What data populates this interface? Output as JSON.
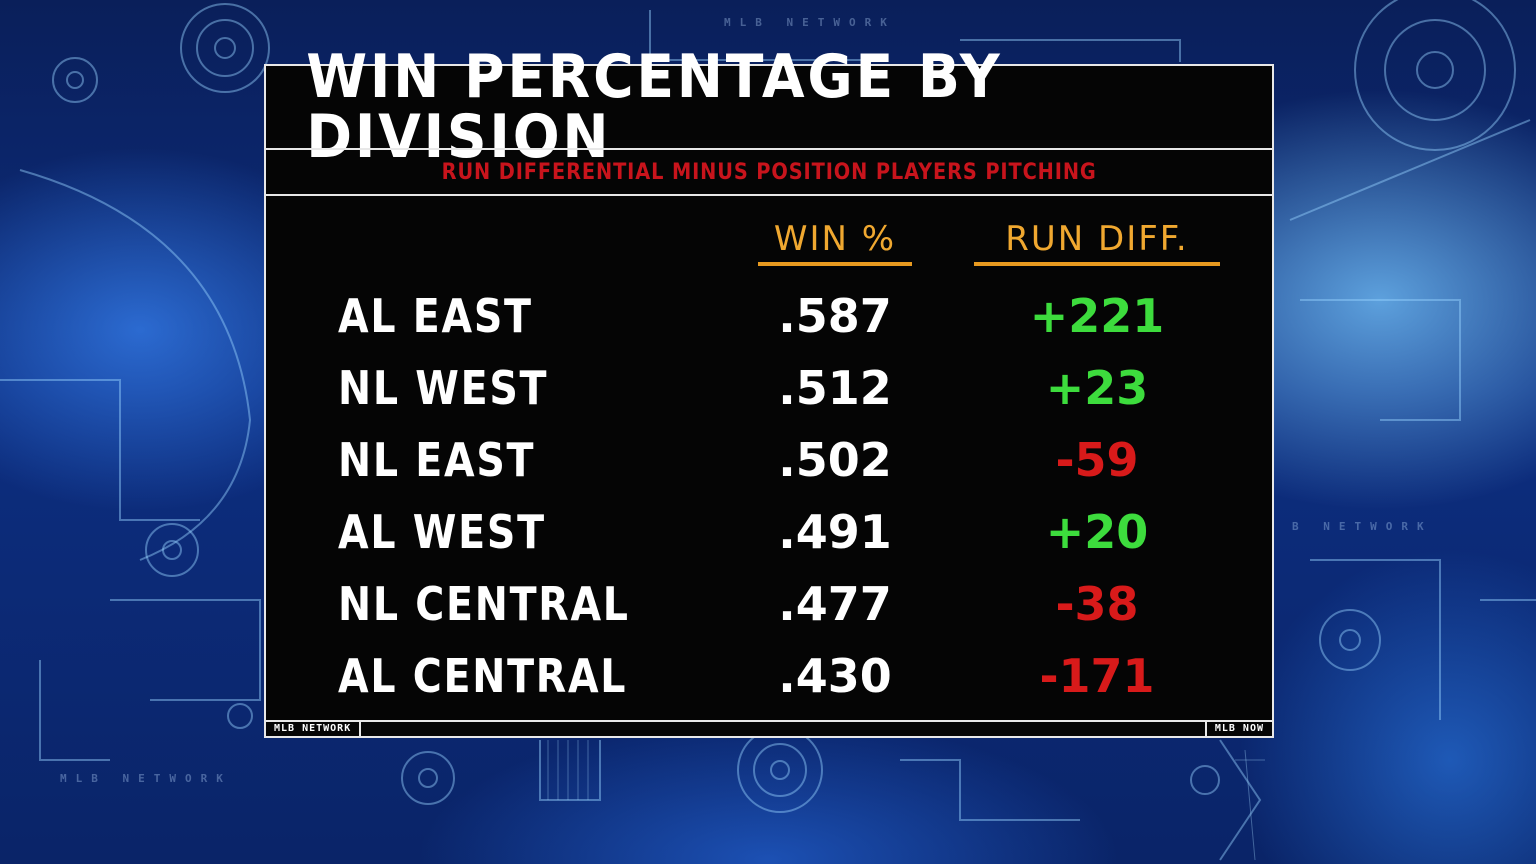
{
  "background": {
    "watermark_top": "MLB NETWORK",
    "watermark_right": "B NETWORK",
    "watermark_bottom_left": "MLB NETWORK"
  },
  "panel": {
    "title": "WIN PERCENTAGE BY DIVISION",
    "subtitle": "RUN DIFFERENTIAL MINUS POSITION PLAYERS PITCHING",
    "columns": {
      "win_pct": "WIN %",
      "run_diff": "RUN DIFF."
    },
    "rows": [
      {
        "division": "AL EAST",
        "win_pct": ".587",
        "run_diff": "+221",
        "color": "#3ddc3d"
      },
      {
        "division": "NL WEST",
        "win_pct": ".512",
        "run_diff": "+23",
        "color": "#3ddc3d"
      },
      {
        "division": "NL EAST",
        "win_pct": ".502",
        "run_diff": "-59",
        "color": "#d81a1a"
      },
      {
        "division": "AL WEST",
        "win_pct": ".491",
        "run_diff": "+20",
        "color": "#3ddc3d"
      },
      {
        "division": "NL CENTRAL",
        "win_pct": ".477",
        "run_diff": "-38",
        "color": "#d81a1a"
      },
      {
        "division": "AL CENTRAL",
        "win_pct": ".430",
        "run_diff": "-171",
        "color": "#d81a1a"
      }
    ],
    "footer_left": "MLB NETWORK",
    "footer_right": "MLB NOW"
  },
  "colors": {
    "positive": "#3ddc3d",
    "negative": "#d81a1a",
    "header_accent": "#f0a830",
    "subtitle": "#c8141c"
  }
}
